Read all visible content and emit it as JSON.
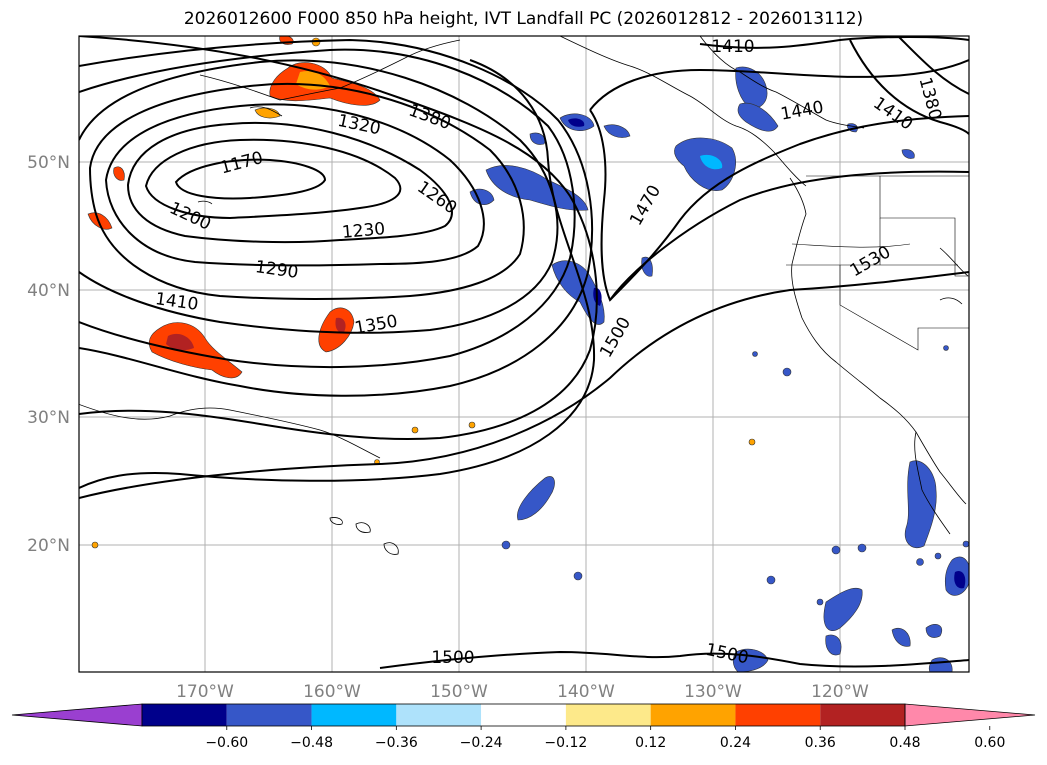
{
  "title": "2026012600 F000 850 hPa height, IVT Landfall PC (2026012812 - 2026013112)",
  "map": {
    "lat_labels": [
      "50°N",
      "40°N",
      "30°N",
      "20°N"
    ],
    "lon_labels": [
      "170°W",
      "160°W",
      "150°W",
      "140°W",
      "130°W",
      "120°W"
    ],
    "contour_labels": [
      "1410",
      "1380",
      "1440",
      "1410",
      "1380",
      "1320",
      "1170",
      "1260",
      "1200",
      "1470",
      "1230",
      "1290",
      "1530",
      "1410",
      "1350",
      "1500",
      "1500",
      "1500"
    ]
  },
  "colorbar": {
    "ticks": [
      "−0.60",
      "−0.48",
      "−0.36",
      "−0.24",
      "−0.12",
      "0.12",
      "0.24",
      "0.36",
      "0.48",
      "0.60"
    ],
    "colors": [
      "#9a3fd0",
      "#00008b",
      "#3657c8",
      "#00b8ff",
      "#aee2fb",
      "#ffffff",
      "#fde98a",
      "#ffa300",
      "#ff4000",
      "#b22222",
      "#ff88aa"
    ]
  }
}
